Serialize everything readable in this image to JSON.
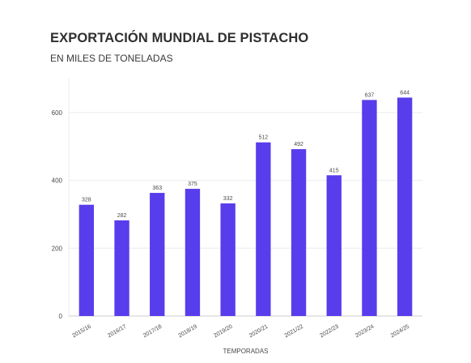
{
  "header": {
    "title": "EXPORTACIÓN MUNDIAL DE PISTACHO",
    "subtitle": "EN MILES DE TONELADAS"
  },
  "chart_data": {
    "type": "bar",
    "title": "EXPORTACIÓN MUNDIAL DE PISTACHO",
    "subtitle": "EN MILES DE TONELADAS",
    "xlabel": "TEMPORADAS",
    "ylabel": "",
    "categories": [
      "2015/16",
      "2016/17",
      "2017/18",
      "2018/19",
      "2019/20",
      "2020/21",
      "2021/22",
      "2022/23",
      "2023/24",
      "2024/25"
    ],
    "values": [
      328,
      282,
      363,
      375,
      332,
      512,
      492,
      415,
      637,
      644
    ],
    "ylim": [
      0,
      700
    ],
    "yticks": [
      0,
      200,
      400,
      600
    ],
    "grid": true,
    "legend": "none",
    "colors": {
      "bar": "#583ded",
      "grid": "#ebebeb",
      "axis": "#cccccc",
      "text": "#4a4a4a"
    }
  }
}
